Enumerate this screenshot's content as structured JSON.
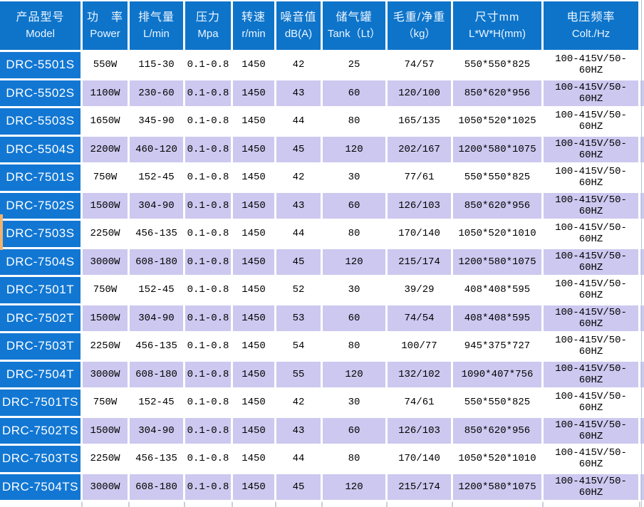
{
  "header": {
    "columns": [
      {
        "zh": "产品型号",
        "en": "Model"
      },
      {
        "zh": "功　率",
        "en": "Power"
      },
      {
        "zh": "排气量",
        "en": "L/min"
      },
      {
        "zh": "压力",
        "en": "Mpa"
      },
      {
        "zh": "转速",
        "en": "r/min"
      },
      {
        "zh": "噪音值",
        "en": "dB(A)"
      },
      {
        "zh": "储气罐",
        "en": "Tank（Lt）"
      },
      {
        "zh": "毛重/净重",
        "en": "（kg）"
      },
      {
        "zh": "尺寸mm",
        "en": "L*W*H(mm)"
      },
      {
        "zh": "电压频率",
        "en": "Colt./Hz"
      }
    ]
  },
  "rows": [
    [
      "DRC-5501S",
      "550W",
      "115-30",
      "0.1-0.8",
      "1450",
      "42",
      "25",
      "74/57",
      "550*550*825",
      "100-415V/50-60HZ"
    ],
    [
      "DRC-5502S",
      "1100W",
      "230-60",
      "0.1-0.8",
      "1450",
      "43",
      "60",
      "120/100",
      "850*620*956",
      "100-415V/50-60HZ"
    ],
    [
      "DRC-5503S",
      "1650W",
      "345-90",
      "0.1-0.8",
      "1450",
      "44",
      "80",
      "165/135",
      "1050*520*1025",
      "100-415V/50-60HZ"
    ],
    [
      "DRC-5504S",
      "2200W",
      "460-120",
      "0.1-0.8",
      "1450",
      "45",
      "120",
      "202/167",
      "1200*580*1075",
      "100-415V/50-60HZ"
    ],
    [
      "DRC-7501S",
      "750W",
      "152-45",
      "0.1-0.8",
      "1450",
      "42",
      "30",
      "77/61",
      "550*550*825",
      "100-415V/50-60HZ"
    ],
    [
      "DRC-7502S",
      "1500W",
      "304-90",
      "0.1-0.8",
      "1450",
      "43",
      "60",
      "126/103",
      "850*620*956",
      "100-415V/50-60HZ"
    ],
    [
      "DRC-7503S",
      "2250W",
      "456-135",
      "0.1-0.8",
      "1450",
      "44",
      "80",
      "170/140",
      "1050*520*1010",
      "100-415V/50-60HZ"
    ],
    [
      "DRC-7504S",
      "3000W",
      "608-180",
      "0.1-0.8",
      "1450",
      "45",
      "120",
      "215/174",
      "1200*580*1075",
      "100-415V/50-60HZ"
    ],
    [
      "DRC-7501T",
      "750W",
      "152-45",
      "0.1-0.8",
      "1450",
      "52",
      "30",
      "39/29",
      "408*408*595",
      "100-415V/50-60HZ"
    ],
    [
      "DRC-7502T",
      "1500W",
      "304-90",
      "0.1-0.8",
      "1450",
      "53",
      "60",
      "74/54",
      "408*408*595",
      "100-415V/50-60HZ"
    ],
    [
      "DRC-7503T",
      "2250W",
      "456-135",
      "0.1-0.8",
      "1450",
      "54",
      "80",
      "100/77",
      "945*375*727",
      "100-415V/50-60HZ"
    ],
    [
      "DRC-7504T",
      "3000W",
      "608-180",
      "0.1-0.8",
      "1450",
      "55",
      "120",
      "132/102",
      "1090*407*756",
      "100-415V/50-60HZ"
    ],
    [
      "DRC-7501TS",
      "750W",
      "152-45",
      "0.1-0.8",
      "1450",
      "42",
      "30",
      "74/61",
      "550*550*825",
      "100-415V/50-60HZ"
    ],
    [
      "DRC-7502TS",
      "1500W",
      "304-90",
      "0.1-0.8",
      "1450",
      "43",
      "60",
      "126/103",
      "850*620*956",
      "100-415V/50-60HZ"
    ],
    [
      "DRC-7503TS",
      "2250W",
      "456-135",
      "0.1-0.8",
      "1450",
      "44",
      "80",
      "170/140",
      "1050*520*1010",
      "100-415V/50-60HZ"
    ],
    [
      "DRC-7504TS",
      "3000W",
      "608-180",
      "0.1-0.8",
      "1450",
      "45",
      "120",
      "215/174",
      "1200*580*1075",
      "100-415V/50-60HZ"
    ]
  ],
  "colors": {
    "header_blue": "#0d74ca",
    "model_blue": "#1277d3",
    "stripe_lavender": "#ccc8ef",
    "grid_white": "#ffffff",
    "accent_orange": "#f2b36d",
    "text_dark": "#000000",
    "header_text": "#eef6ff"
  }
}
